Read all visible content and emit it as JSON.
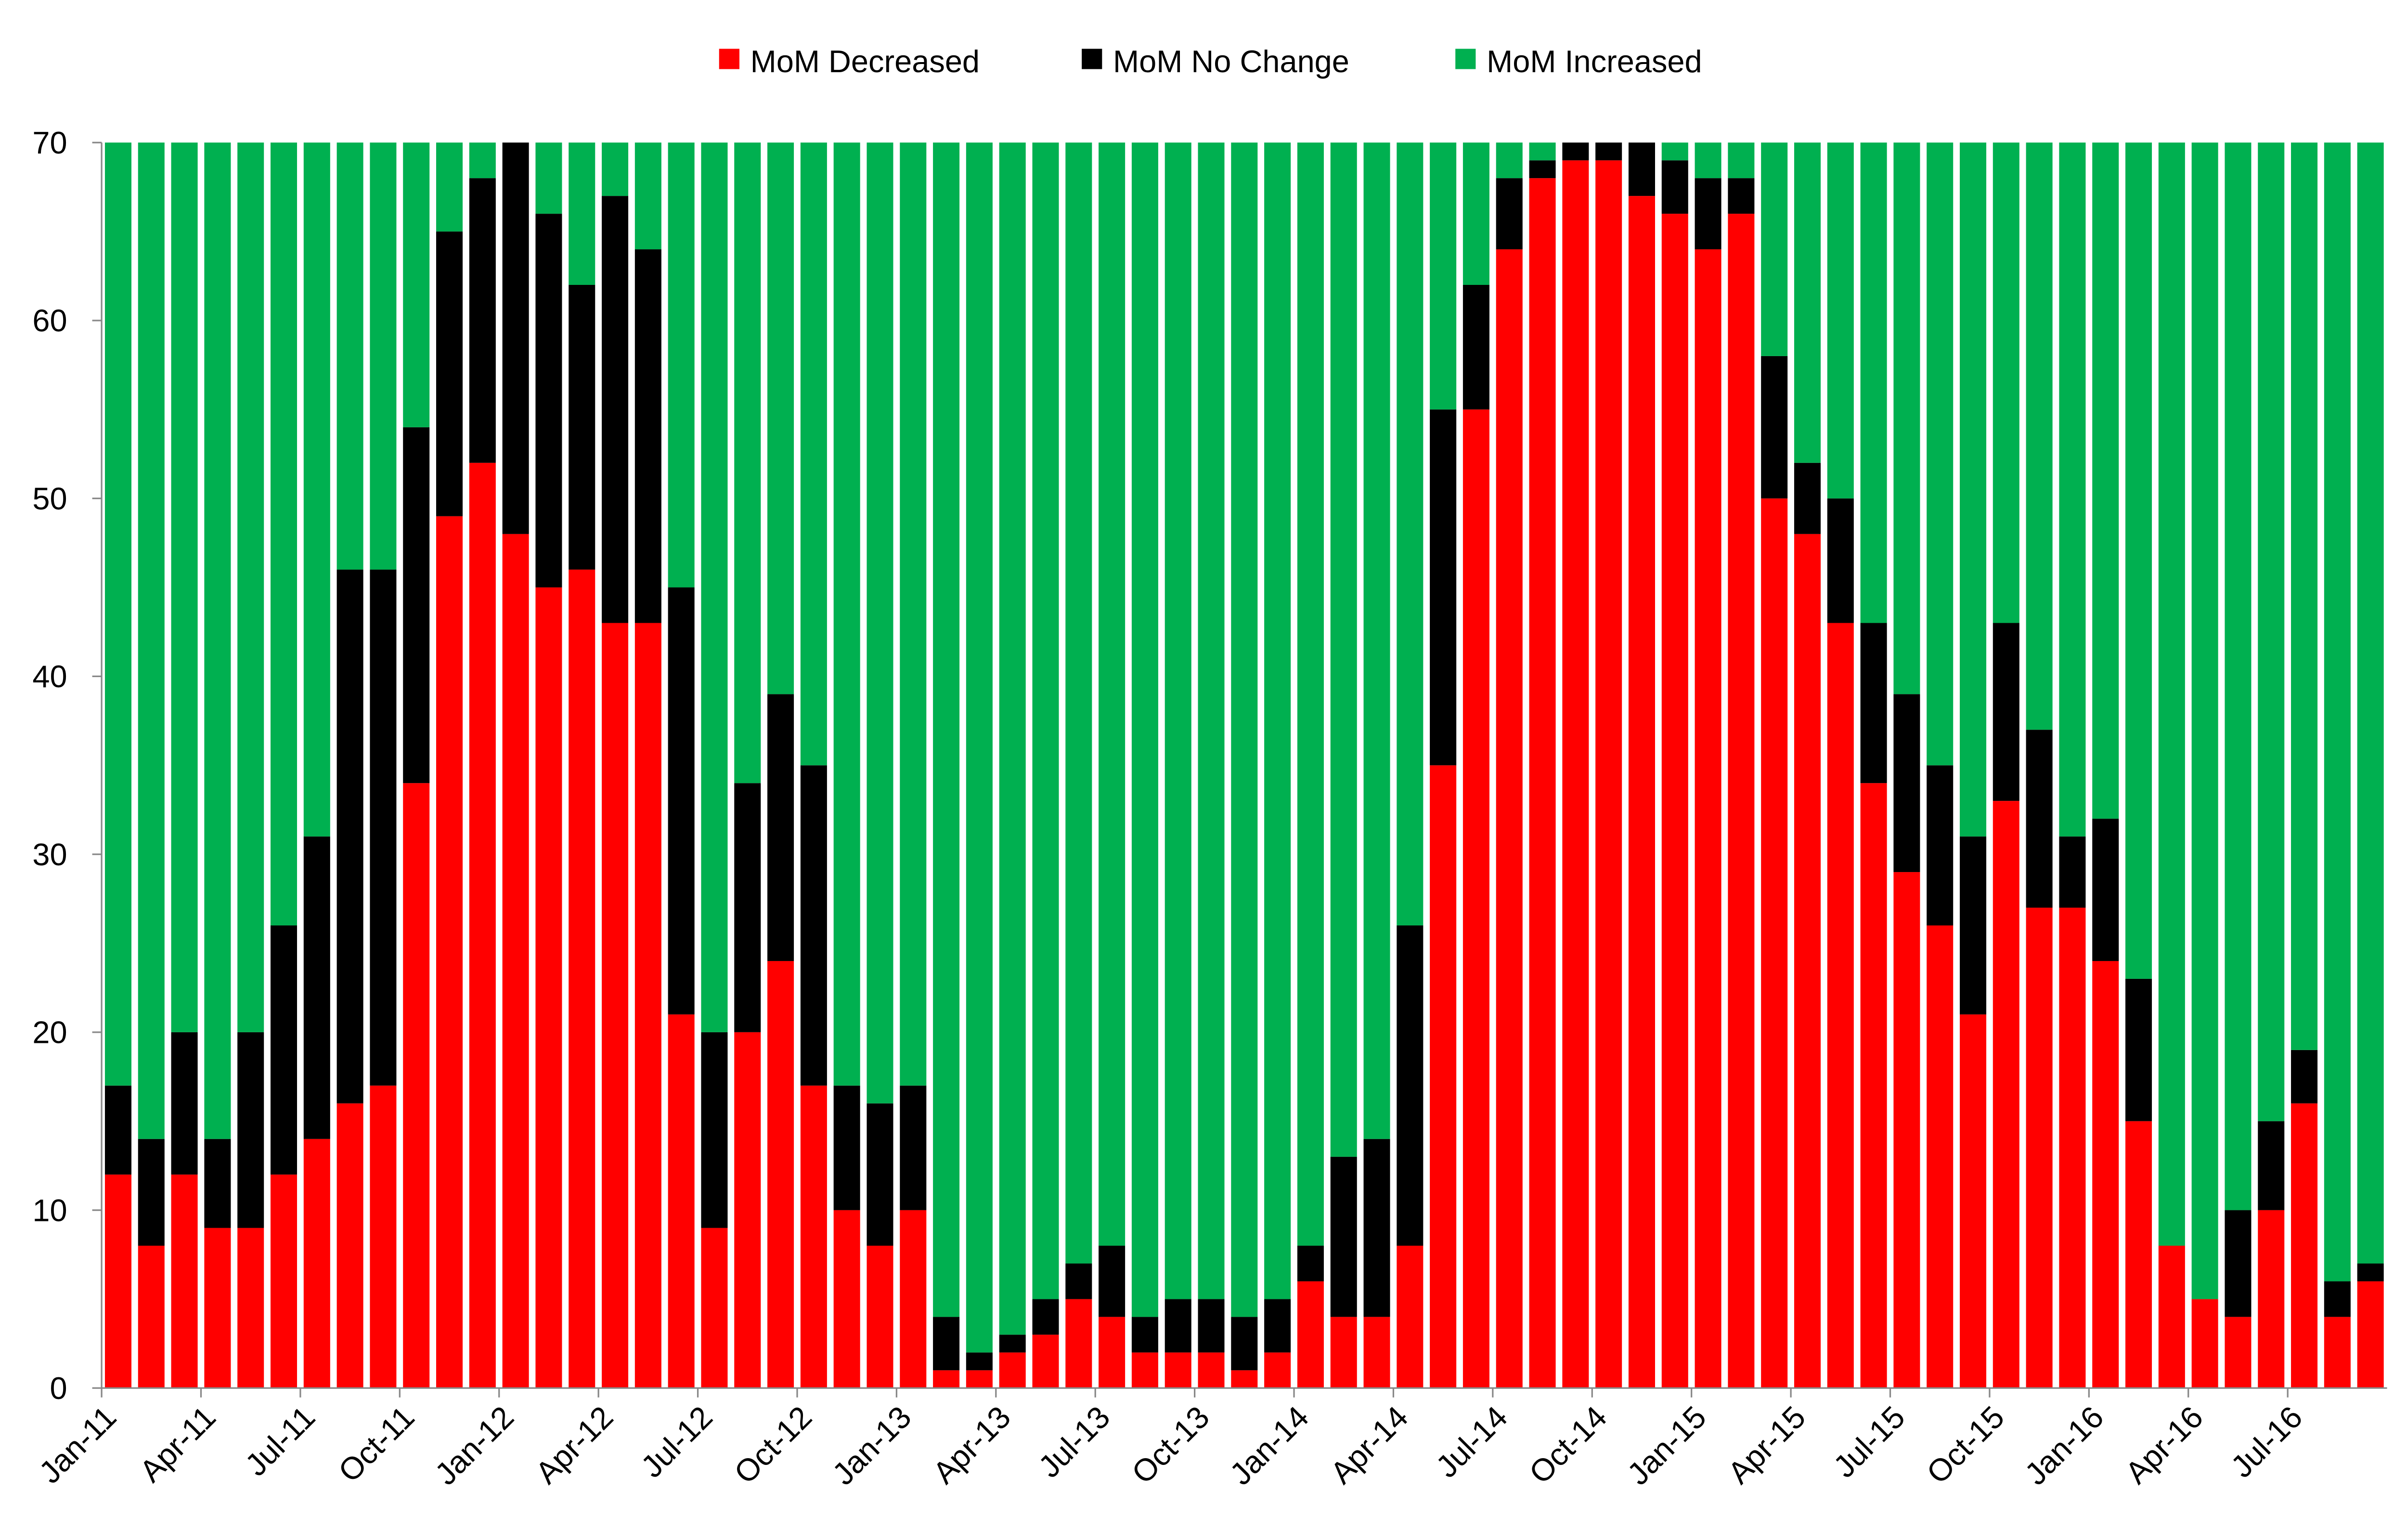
{
  "chart_data": {
    "type": "stacked_bar",
    "categories": [
      "Jan-11",
      null,
      null,
      "Apr-11",
      null,
      null,
      "Jul-11",
      null,
      null,
      "Oct-11",
      null,
      null,
      "Jan-12",
      null,
      null,
      "Apr-12",
      null,
      null,
      "Jul-12",
      null,
      null,
      "Oct-12",
      null,
      null,
      "Jan-13",
      null,
      null,
      "Apr-13",
      null,
      null,
      "Jul-13",
      null,
      null,
      "Oct-13",
      null,
      null,
      "Jan-14",
      null,
      null,
      "Apr-14",
      null,
      null,
      "Jul-14",
      null,
      null,
      "Oct-14",
      null,
      null,
      "Jan-15",
      null,
      null,
      "Apr-15",
      null,
      null,
      "Jul-15",
      null,
      null,
      "Oct-15",
      null,
      null,
      "Jan-16",
      null,
      null,
      "Apr-16",
      null,
      null,
      "Jul-16",
      null,
      null
    ],
    "series": [
      {
        "name": "MoM Decreased",
        "color": "#ff0000",
        "values": [
          12,
          8,
          12,
          9,
          9,
          12,
          14,
          16,
          17,
          34,
          49,
          52,
          48,
          45,
          46,
          43,
          43,
          21,
          9,
          20,
          24,
          17,
          10,
          8,
          10,
          1,
          1,
          2,
          3,
          5,
          4,
          2,
          2,
          2,
          1,
          2,
          6,
          4,
          4,
          8,
          35,
          55,
          64,
          68,
          69,
          69,
          67,
          66,
          64,
          66,
          50,
          48,
          43,
          34,
          29,
          26,
          21,
          33,
          27,
          27,
          24,
          15,
          8,
          5,
          4,
          10,
          16,
          4,
          6
        ]
      },
      {
        "name": "MoM No Change",
        "color": "#000000",
        "values": [
          5,
          6,
          8,
          5,
          11,
          14,
          17,
          30,
          29,
          20,
          16,
          16,
          22,
          21,
          16,
          24,
          21,
          24,
          11,
          14,
          15,
          18,
          7,
          8,
          7,
          3,
          1,
          1,
          2,
          2,
          4,
          2,
          3,
          3,
          3,
          3,
          2,
          9,
          10,
          18,
          20,
          7,
          4,
          1,
          1,
          1,
          3,
          3,
          4,
          2,
          8,
          4,
          7,
          9,
          10,
          9,
          10,
          10,
          10,
          4,
          8,
          8,
          0,
          0,
          6,
          5,
          3,
          2,
          1
        ]
      },
      {
        "name": "MoM Increased",
        "color": "#00b050",
        "values": [
          53,
          56,
          50,
          56,
          50,
          44,
          39,
          24,
          24,
          16,
          5,
          2,
          0,
          4,
          8,
          3,
          6,
          25,
          50,
          36,
          31,
          35,
          53,
          54,
          53,
          66,
          68,
          67,
          65,
          63,
          62,
          66,
          65,
          65,
          66,
          65,
          62,
          57,
          56,
          44,
          15,
          8,
          2,
          1,
          0,
          0,
          0,
          1,
          2,
          2,
          12,
          18,
          20,
          27,
          31,
          35,
          39,
          27,
          33,
          39,
          38,
          47,
          62,
          65,
          60,
          55,
          51,
          64,
          63
        ]
      }
    ],
    "ylim": [
      0,
      70
    ],
    "yticks": [
      0,
      10,
      20,
      30,
      40,
      50,
      60,
      70
    ],
    "legend": "top"
  }
}
